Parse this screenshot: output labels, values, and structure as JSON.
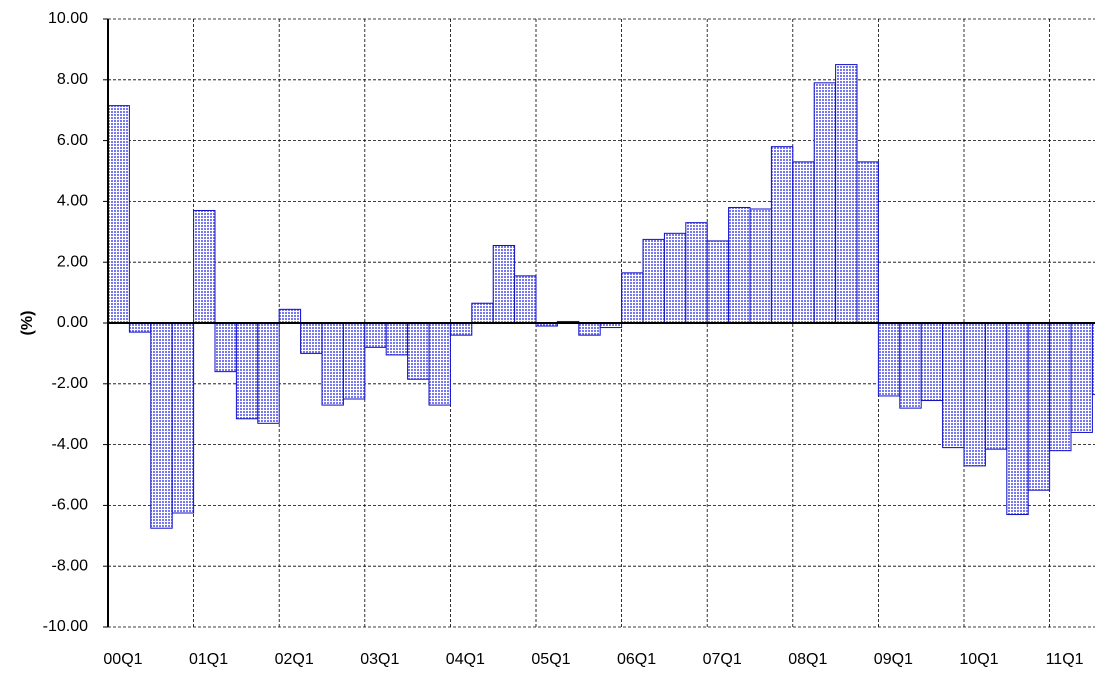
{
  "chart_data": {
    "type": "bar",
    "y_label": "(%)",
    "categories": [
      "00Q1",
      null,
      null,
      null,
      "01Q1",
      null,
      null,
      null,
      "02Q1",
      null,
      null,
      null,
      "03Q1",
      null,
      null,
      null,
      "04Q1",
      null,
      null,
      null,
      "05Q1",
      null,
      null,
      null,
      "06Q1",
      null,
      null,
      null,
      "07Q1",
      null,
      null,
      null,
      "08Q1",
      null,
      null,
      null,
      "09Q1",
      null,
      null,
      null,
      "10Q1",
      null,
      null,
      null,
      "11Q1",
      null,
      null
    ],
    "values": [
      7.15,
      -0.3,
      -6.75,
      -6.25,
      3.7,
      -1.6,
      -3.15,
      -3.3,
      0.45,
      -1.0,
      -2.7,
      -2.5,
      -0.8,
      -1.05,
      -1.85,
      -2.7,
      -0.4,
      0.65,
      2.55,
      1.55,
      -0.1,
      0.05,
      -0.4,
      -0.15,
      1.65,
      2.75,
      2.95,
      3.3,
      2.7,
      3.8,
      3.75,
      5.8,
      5.3,
      7.9,
      8.5,
      5.3,
      -2.4,
      -2.8,
      -2.55,
      -4.1,
      -4.7,
      -4.15,
      -6.3,
      -5.5,
      -4.2,
      -3.6,
      -2.35
    ],
    "color": "#7878f0",
    "edge_color": "#1010c8",
    "ylim": [
      -10,
      10
    ],
    "yticks": [
      {
        "value": -10,
        "label": "-10.00"
      },
      {
        "value": -8,
        "label": "-8.00"
      },
      {
        "value": -6,
        "label": "-6.00"
      },
      {
        "value": -4,
        "label": "-4.00"
      },
      {
        "value": -2,
        "label": "-2.00"
      },
      {
        "value": 0,
        "label": "0.00"
      },
      {
        "value": 2,
        "label": "2.00"
      },
      {
        "value": 4,
        "label": "4.00"
      },
      {
        "value": 6,
        "label": "6.00"
      },
      {
        "value": 8,
        "label": "8.00"
      },
      {
        "value": 10,
        "label": "10.00"
      }
    ],
    "grid": true
  }
}
